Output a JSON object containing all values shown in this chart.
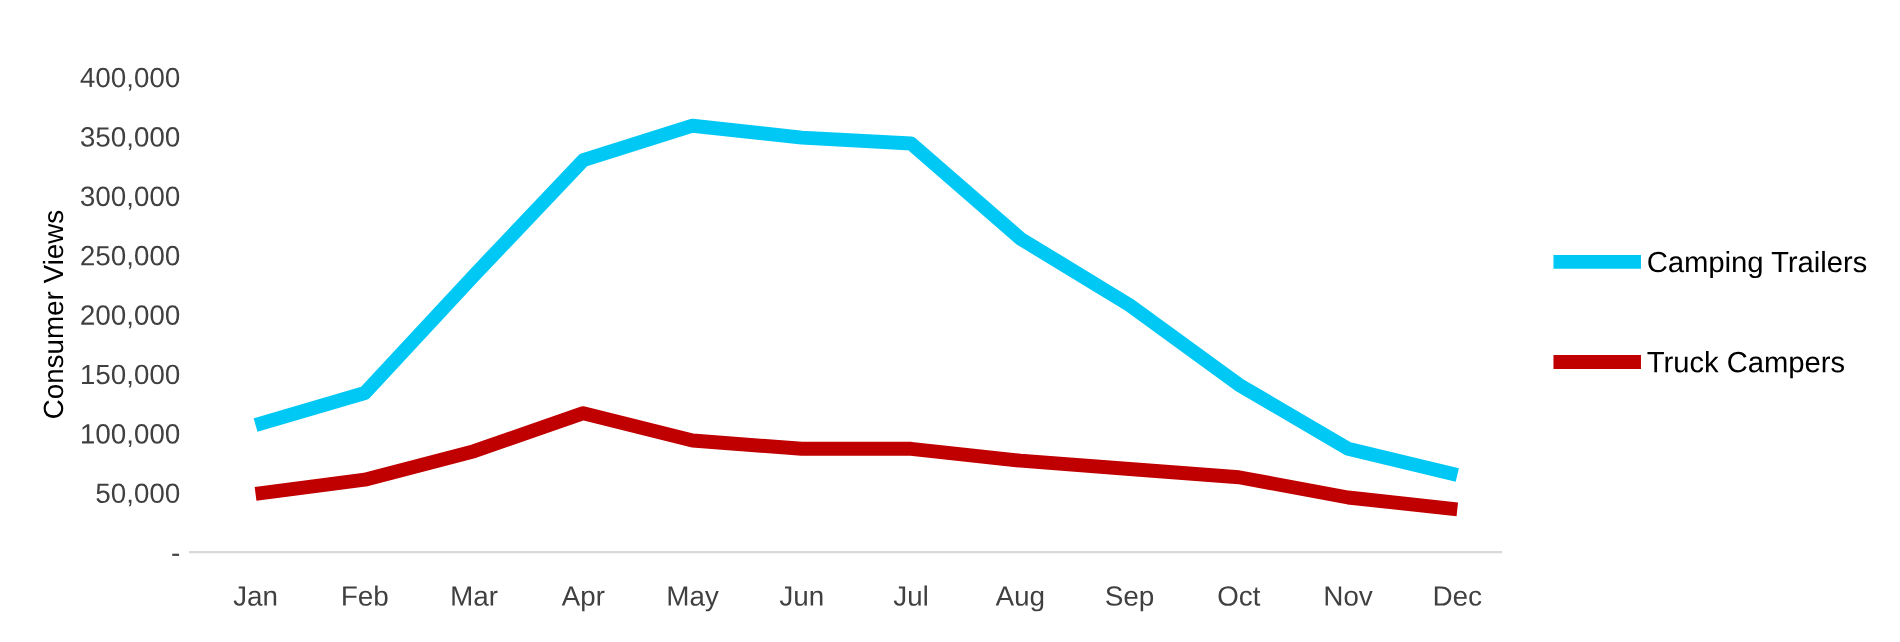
{
  "chart_data": {
    "type": "line",
    "ylabel": "Consumer Views",
    "categories": [
      "Jan",
      "Feb",
      "Mar",
      "Apr",
      "May",
      "Jun",
      "Jul",
      "Aug",
      "Sep",
      "Oct",
      "Nov",
      "Dec"
    ],
    "series": [
      {
        "name": "Camping Trailers",
        "color": "#00c8f5",
        "values": [
          107000,
          134000,
          233000,
          330000,
          359000,
          349000,
          344000,
          264000,
          208000,
          141000,
          87000,
          65000
        ]
      },
      {
        "name": "Truck Campers",
        "color": "#c00000",
        "values": [
          49000,
          61000,
          85000,
          117000,
          94000,
          87000,
          87000,
          77000,
          70000,
          63000,
          46000,
          36000
        ]
      }
    ],
    "ylim": [
      0,
      400000
    ],
    "yticks": [
      {
        "value": 0,
        "label": "-"
      },
      {
        "value": 50000,
        "label": "50,000"
      },
      {
        "value": 100000,
        "label": "100,000"
      },
      {
        "value": 150000,
        "label": "150,000"
      },
      {
        "value": 200000,
        "label": "200,000"
      },
      {
        "value": 250000,
        "label": "250,000"
      },
      {
        "value": 300000,
        "label": "300,000"
      },
      {
        "value": 350000,
        "label": "350,000"
      },
      {
        "value": 400000,
        "label": "400,000"
      }
    ],
    "grid": false,
    "legend": "right",
    "marker": "none",
    "line_style": "solid"
  }
}
